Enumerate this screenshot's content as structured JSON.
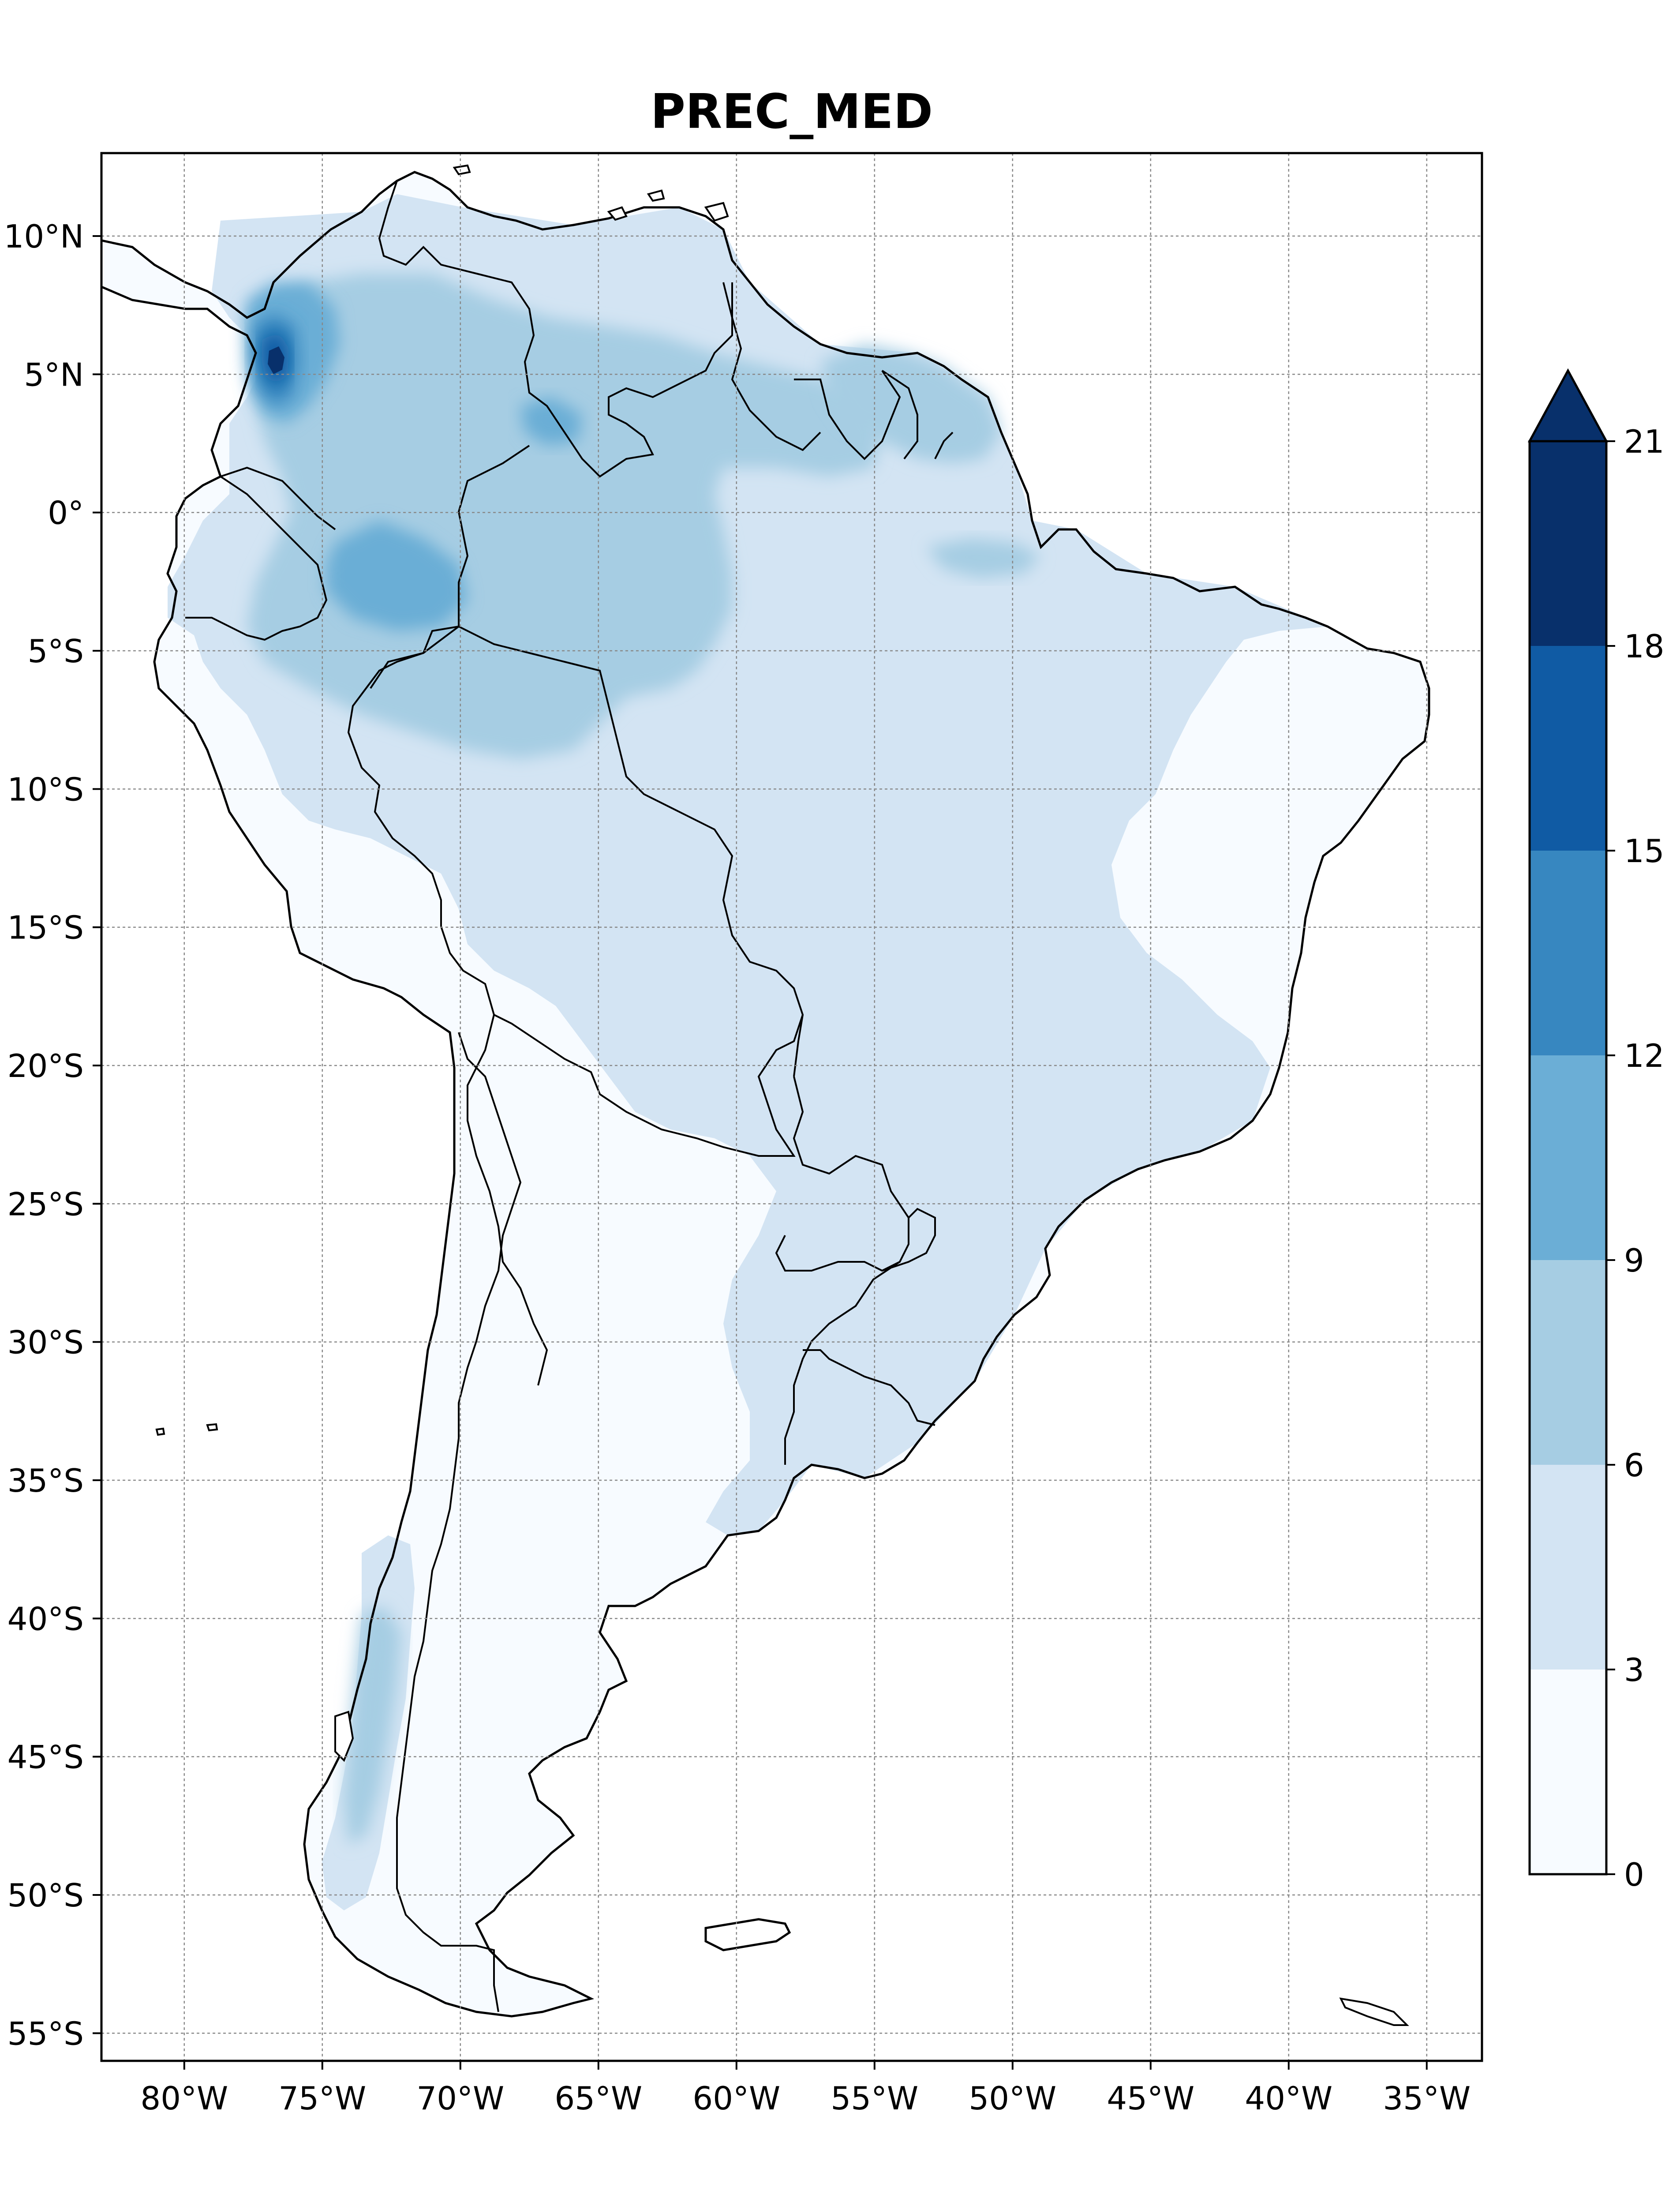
{
  "title": "PREC_MED",
  "map": {
    "region": "South America",
    "lon_range": [
      -83,
      -33
    ],
    "lat_range": [
      -56,
      13
    ],
    "grid": true,
    "projection": "PlateCarree"
  },
  "axes": {
    "x_ticks": [
      {
        "value": -80,
        "label": "80°W"
      },
      {
        "value": -75,
        "label": "75°W"
      },
      {
        "value": -70,
        "label": "70°W"
      },
      {
        "value": -65,
        "label": "65°W"
      },
      {
        "value": -60,
        "label": "60°W"
      },
      {
        "value": -55,
        "label": "55°W"
      },
      {
        "value": -50,
        "label": "50°W"
      },
      {
        "value": -45,
        "label": "45°W"
      },
      {
        "value": -40,
        "label": "40°W"
      },
      {
        "value": -35,
        "label": "35°W"
      }
    ],
    "y_ticks": [
      {
        "value": 10,
        "label": "10°N"
      },
      {
        "value": 5,
        "label": "5°N"
      },
      {
        "value": 0,
        "label": "0°"
      },
      {
        "value": -5,
        "label": "5°S"
      },
      {
        "value": -10,
        "label": "10°S"
      },
      {
        "value": -15,
        "label": "15°S"
      },
      {
        "value": -20,
        "label": "20°S"
      },
      {
        "value": -25,
        "label": "25°S"
      },
      {
        "value": -30,
        "label": "30°S"
      },
      {
        "value": -35,
        "label": "35°S"
      },
      {
        "value": -40,
        "label": "40°S"
      },
      {
        "value": -45,
        "label": "45°S"
      },
      {
        "value": -50,
        "label": "50°S"
      },
      {
        "value": -55,
        "label": "55°S"
      }
    ]
  },
  "colorbar": {
    "extend": "max",
    "levels": [
      {
        "from": 0,
        "to": 3,
        "color": "#f7fbff"
      },
      {
        "from": 3,
        "to": 6,
        "color": "#d3e4f3"
      },
      {
        "from": 6,
        "to": 9,
        "color": "#a6cde3"
      },
      {
        "from": 9,
        "to": 12,
        "color": "#6baed6"
      },
      {
        "from": 12,
        "to": 15,
        "color": "#3787c0"
      },
      {
        "from": 15,
        "to": 18,
        "color": "#105ba4"
      },
      {
        "from": 18,
        "to": 21,
        "color": "#08306b"
      }
    ],
    "tick_labels": [
      "0",
      "3",
      "6",
      "9",
      "12",
      "15",
      "18",
      "21"
    ],
    "extend_color": "#08306b"
  },
  "colors": {
    "ocean": "#ffffff",
    "coast": "#000000",
    "grid": "#888888"
  }
}
